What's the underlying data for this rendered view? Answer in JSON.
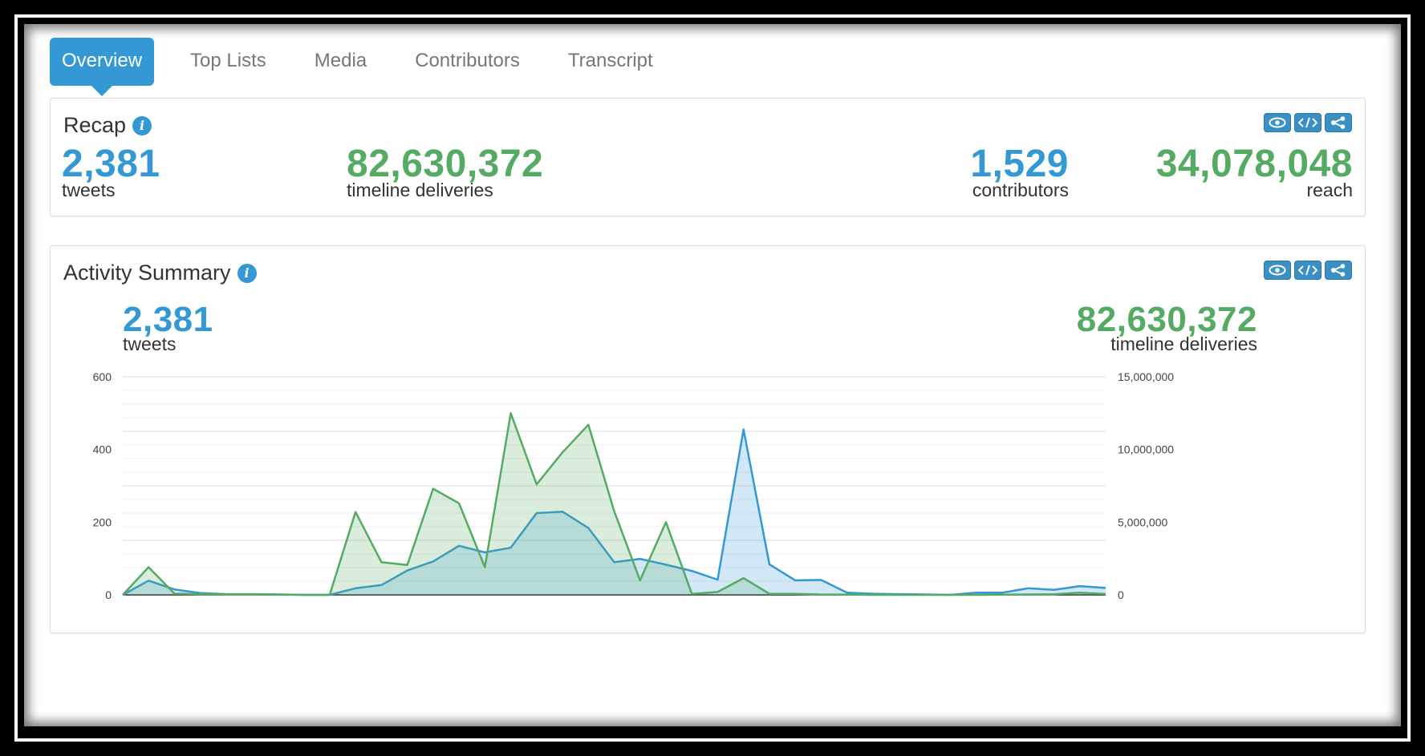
{
  "tabs": [
    "Overview",
    "Top Lists",
    "Media",
    "Contributors",
    "Transcript"
  ],
  "recap": {
    "title": "Recap",
    "tweets": {
      "value": "2,381",
      "label": "tweets"
    },
    "timeline": {
      "value": "82,630,372",
      "label": "timeline deliveries"
    },
    "contributors": {
      "value": "1,529",
      "label": "contributors"
    },
    "reach": {
      "value": "34,078,048",
      "label": "reach"
    }
  },
  "activity": {
    "title": "Activity Summary",
    "tweets": {
      "value": "2,381",
      "label": "tweets"
    },
    "timeline": {
      "value": "82,630,372",
      "label": "timeline deliveries"
    }
  },
  "icons": {
    "view": "eye-icon",
    "embed": "code-icon",
    "share": "share-icon"
  },
  "colors": {
    "accent": "#3498d4",
    "green": "#55ab63",
    "text": "#333333",
    "tab_inactive": "#777777"
  },
  "chart_data": {
    "type": "area",
    "left_axis": {
      "ticks": [
        "600",
        "400",
        "200",
        "0"
      ],
      "ylim": [
        0,
        600
      ]
    },
    "right_axis": {
      "ticks": [
        "15,000,000",
        "10,000,000",
        "5,000,000",
        "0"
      ],
      "ylim": [
        0,
        15000000
      ]
    },
    "series": [
      {
        "axis": "left",
        "color": "#3498d4",
        "values": [
          0,
          39,
          15,
          5,
          2,
          2,
          1,
          0,
          0,
          18,
          27,
          67,
          92,
          135,
          117,
          130,
          225,
          229,
          184,
          90,
          99,
          83,
          66,
          42,
          455,
          84,
          40,
          41,
          6,
          3,
          2,
          1,
          0,
          6,
          6,
          18,
          14,
          24,
          19
        ]
      },
      {
        "axis": "right",
        "color": "#55ab63",
        "values": [
          0,
          1900000,
          80000,
          50000,
          40000,
          40000,
          20000,
          0,
          0,
          5700000,
          2250000,
          2050000,
          7300000,
          6300000,
          1900000,
          12500000,
          7600000,
          9800000,
          11700000,
          5750000,
          1000000,
          5000000,
          70000,
          200000,
          1150000,
          70000,
          70000,
          20000,
          10000,
          0,
          0,
          0,
          0,
          0,
          10000,
          30000,
          40000,
          150000,
          60000
        ]
      }
    ]
  }
}
